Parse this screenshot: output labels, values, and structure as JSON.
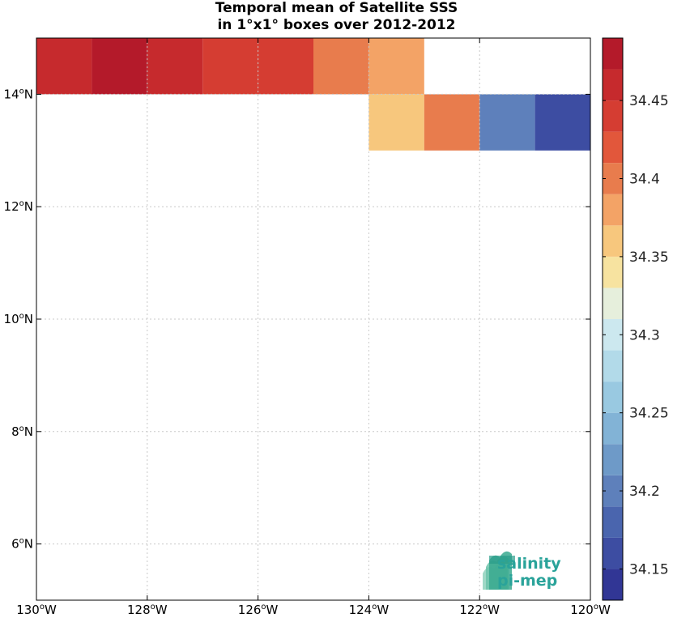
{
  "title": {
    "line1": "Temporal mean of Satellite SSS",
    "line2": "in 1°x1° boxes over 2012-2012"
  },
  "logo": {
    "line1": "salinity",
    "line2": "pi-mep",
    "icon": "salinity-wave-icon"
  },
  "chart_data": {
    "type": "heatmap",
    "title": "Temporal mean of Satellite SSS in 1°x1° boxes over 2012-2012",
    "xlim": [
      -130,
      -120
    ],
    "ylim": [
      5,
      15
    ],
    "x_ticks": [
      -130,
      -128,
      -126,
      -124,
      -122,
      -120
    ],
    "x_tick_labels": [
      "130°W",
      "128°W",
      "126°W",
      "124°W",
      "122°W",
      "120°W"
    ],
    "y_ticks": [
      6,
      8,
      10,
      12,
      14
    ],
    "y_tick_labels": [
      "6°N",
      "8°N",
      "10°N",
      "12°N",
      "14°N"
    ],
    "grid": true,
    "cells": [
      {
        "lon": -130,
        "lat": 14,
        "value": 34.465
      },
      {
        "lon": -129,
        "lat": 14,
        "value": 34.485
      },
      {
        "lon": -128,
        "lat": 14,
        "value": 34.455
      },
      {
        "lon": -127,
        "lat": 14,
        "value": 34.435
      },
      {
        "lon": -126,
        "lat": 14,
        "value": 34.435
      },
      {
        "lon": -125,
        "lat": 14,
        "value": 34.395
      },
      {
        "lon": -124,
        "lat": 14,
        "value": 34.38
      },
      {
        "lon": -124,
        "lat": 13,
        "value": 34.355
      },
      {
        "lon": -123,
        "lat": 13,
        "value": 34.395
      },
      {
        "lon": -122,
        "lat": 13,
        "value": 34.21
      },
      {
        "lon": -121,
        "lat": 13,
        "value": 34.155
      }
    ],
    "colorbar": {
      "range": [
        34.13,
        34.49
      ],
      "step": 0.02,
      "tick_values": [
        34.15,
        34.2,
        34.25,
        34.3,
        34.35,
        34.4,
        34.45
      ],
      "tick_labels": [
        "34.15",
        "34.2",
        "34.25",
        "34.3",
        "34.35",
        "34.4",
        "34.45"
      ],
      "colors": [
        "#313695",
        "#3d4da2",
        "#4a65ae",
        "#5e80bb",
        "#6e9ac8",
        "#82b3d6",
        "#99c9e1",
        "#b2dae9",
        "#cce8ef",
        "#e6efdc",
        "#f7e3a0",
        "#f7c77d",
        "#f3a366",
        "#e87c4d",
        "#e2573b",
        "#d53d32",
        "#c62a2d",
        "#b41a2a",
        "#a50026"
      ]
    }
  }
}
